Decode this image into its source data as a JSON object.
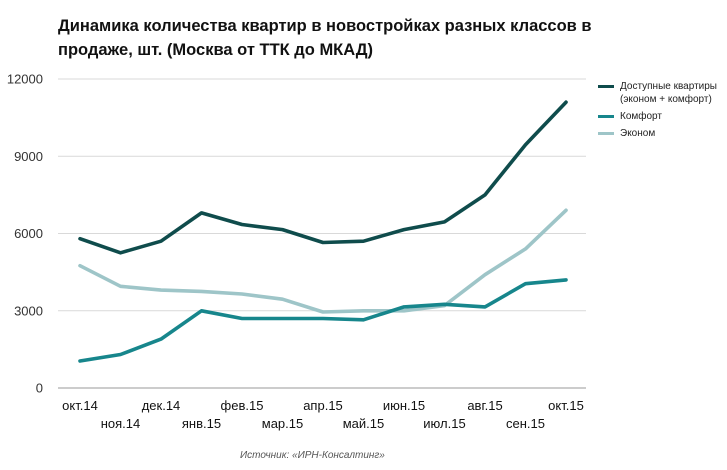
{
  "chart_data": {
    "type": "line",
    "title": "Динамика количества квартир в новостройках разных классов в продаже, шт. (Москва от ТТК до МКАД)",
    "categories": [
      "окт.14",
      "ноя.14",
      "дек.14",
      "янв.15",
      "фев.15",
      "мар.15",
      "апр.15",
      "май.15",
      "июн.15",
      "июл.15",
      "авг.15",
      "сен.15",
      "окт.15"
    ],
    "series": [
      {
        "name": "Доступные квартиры (эконом + комфорт)",
        "color": "#0f4c4c",
        "values": [
          5800,
          5250,
          5700,
          6800,
          6350,
          6150,
          5650,
          5700,
          6150,
          6450,
          7500,
          9450,
          11100
        ]
      },
      {
        "name": "Комфорт",
        "color": "#17868c",
        "values": [
          1050,
          1300,
          1900,
          3000,
          2700,
          2700,
          2700,
          2650,
          3150,
          3250,
          3150,
          4050,
          4200
        ]
      },
      {
        "name": "Эконом",
        "color": "#9ec5c8",
        "values": [
          4750,
          3950,
          3800,
          3750,
          3650,
          3450,
          2950,
          3000,
          3000,
          3200,
          4400,
          5400,
          6900
        ]
      }
    ],
    "yticks": [
      "0",
      "3000",
      "6000",
      "9000",
      "12000"
    ],
    "ylim": [
      0,
      12000
    ],
    "grid": true,
    "legend": "right"
  },
  "source": "Источник: «ИРН-Консалтинг»"
}
